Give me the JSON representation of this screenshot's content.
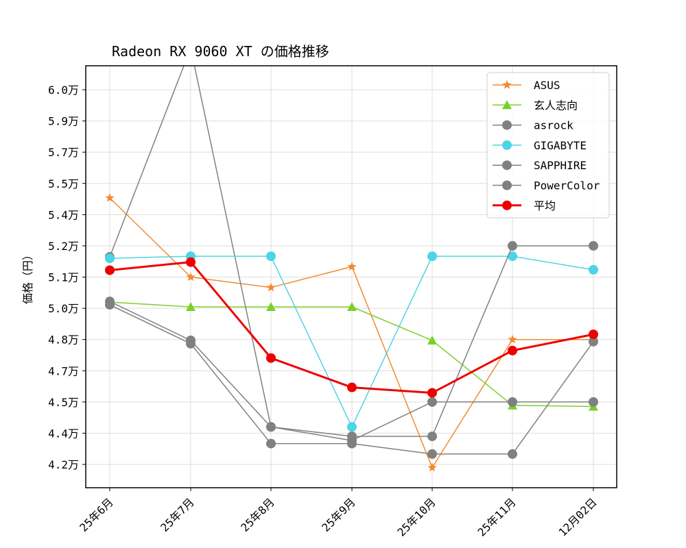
{
  "chart_data": {
    "type": "line",
    "title": "Radeon RX 9060 XT の価格推移",
    "xlabel": "",
    "ylabel": "価格（円）",
    "categories": [
      "25年6月",
      "25年7月",
      "25年8月",
      "25年9月",
      "25年10月",
      "25年11月",
      "12月02日"
    ],
    "yticks": [
      {
        "value": 42000,
        "label": "4.2万"
      },
      {
        "value": 43500,
        "label": "4.4万"
      },
      {
        "value": 45000,
        "label": "4.5万"
      },
      {
        "value": 46500,
        "label": "4.7万"
      },
      {
        "value": 48000,
        "label": "4.8万"
      },
      {
        "value": 49500,
        "label": "5.0万"
      },
      {
        "value": 51000,
        "label": "5.1万"
      },
      {
        "value": 52500,
        "label": "5.2万"
      },
      {
        "value": 54000,
        "label": "5.4万"
      },
      {
        "value": 55500,
        "label": "5.5万"
      },
      {
        "value": 57000,
        "label": "5.7万"
      },
      {
        "value": 58500,
        "label": "5.9万"
      },
      {
        "value": 60000,
        "label": "6.0万"
      }
    ],
    "ylim": [
      40900,
      61150
    ],
    "grid": true,
    "legend_position": "upper right",
    "series": [
      {
        "name": "ASUS",
        "color": "#f28a2e",
        "marker": "star",
        "width": 1.5,
        "values": [
          54800,
          51000,
          50500,
          51500,
          41850,
          48000,
          48000
        ]
      },
      {
        "name": "玄人志向",
        "color": "#7ccf2a",
        "marker": "triangle",
        "width": 1.5,
        "values": [
          49800,
          49570,
          49570,
          49570,
          47960,
          44840,
          44780
        ]
      },
      {
        "name": "asrock",
        "color": "#808080",
        "marker": "circle",
        "width": 1.5,
        "values": [
          51970,
          62000,
          43800,
          43150,
          45000,
          45000,
          45000
        ]
      },
      {
        "name": "GIGABYTE",
        "color": "#4dd4e6",
        "marker": "circle",
        "width": 1.5,
        "values": [
          51900,
          52000,
          52000,
          43800,
          52000,
          52000,
          51350
        ]
      },
      {
        "name": "SAPPHIRE",
        "color": "#808080",
        "marker": "circle",
        "width": 1.5,
        "values": [
          49830,
          47960,
          43800,
          43350,
          43350,
          52500,
          52500
        ]
      },
      {
        "name": "PowerColor",
        "color": "#808080",
        "marker": "circle",
        "width": 1.5,
        "values": [
          49670,
          47800,
          43000,
          43000,
          42500,
          42500,
          47900
        ]
      },
      {
        "name": "平均",
        "color": "#ee0000",
        "marker": "circle",
        "width": 3,
        "values": [
          51330,
          51720,
          47110,
          45700,
          45440,
          47470,
          48250
        ]
      }
    ]
  }
}
